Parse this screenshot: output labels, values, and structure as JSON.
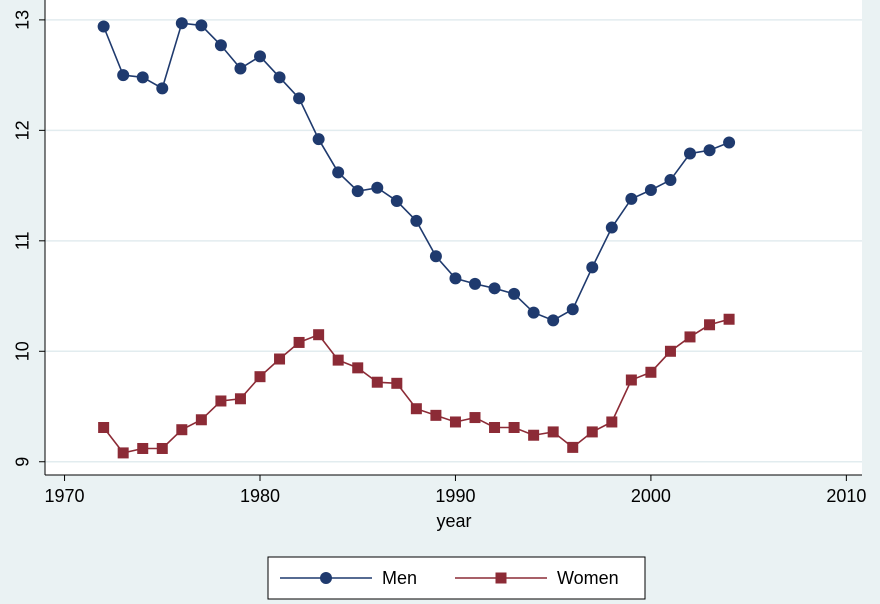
{
  "chart_data": {
    "type": "line",
    "x": [
      1972,
      1973,
      1974,
      1975,
      1976,
      1977,
      1978,
      1979,
      1980,
      1981,
      1982,
      1983,
      1984,
      1985,
      1986,
      1987,
      1988,
      1989,
      1990,
      1991,
      1992,
      1993,
      1994,
      1995,
      1996,
      1997,
      1998,
      1999,
      2000,
      2001,
      2002,
      2003,
      2004
    ],
    "series": [
      {
        "name": "Men",
        "color": "#1f3a6e",
        "marker": "circle",
        "values": [
          12.94,
          12.5,
          12.48,
          12.38,
          12.97,
          12.95,
          12.77,
          12.56,
          12.67,
          12.48,
          12.29,
          11.92,
          11.62,
          11.45,
          11.48,
          11.36,
          11.18,
          10.86,
          10.66,
          10.61,
          10.57,
          10.52,
          10.35,
          10.28,
          10.38,
          10.76,
          11.12,
          11.38,
          11.46,
          11.55,
          11.79,
          11.82,
          11.89
        ]
      },
      {
        "name": "Women",
        "color": "#8c2b36",
        "marker": "square",
        "values": [
          9.31,
          9.08,
          9.12,
          9.12,
          9.29,
          9.38,
          9.55,
          9.57,
          9.77,
          9.93,
          10.08,
          10.15,
          9.92,
          9.85,
          9.72,
          9.71,
          9.48,
          9.42,
          9.36,
          9.4,
          9.31,
          9.31,
          9.24,
          9.27,
          9.13,
          9.27,
          9.36,
          9.74,
          9.81,
          10.0,
          10.13,
          10.24,
          10.29
        ]
      }
    ],
    "x_label": "year",
    "xlim": [
      1969,
      2010.8
    ],
    "xticks": [
      1970,
      1980,
      1990,
      2000,
      2010
    ],
    "ylim": [
      8.88,
      13.18
    ],
    "yticks": [
      9,
      10,
      11,
      12,
      13
    ],
    "grid": true,
    "legend": "bottom"
  }
}
